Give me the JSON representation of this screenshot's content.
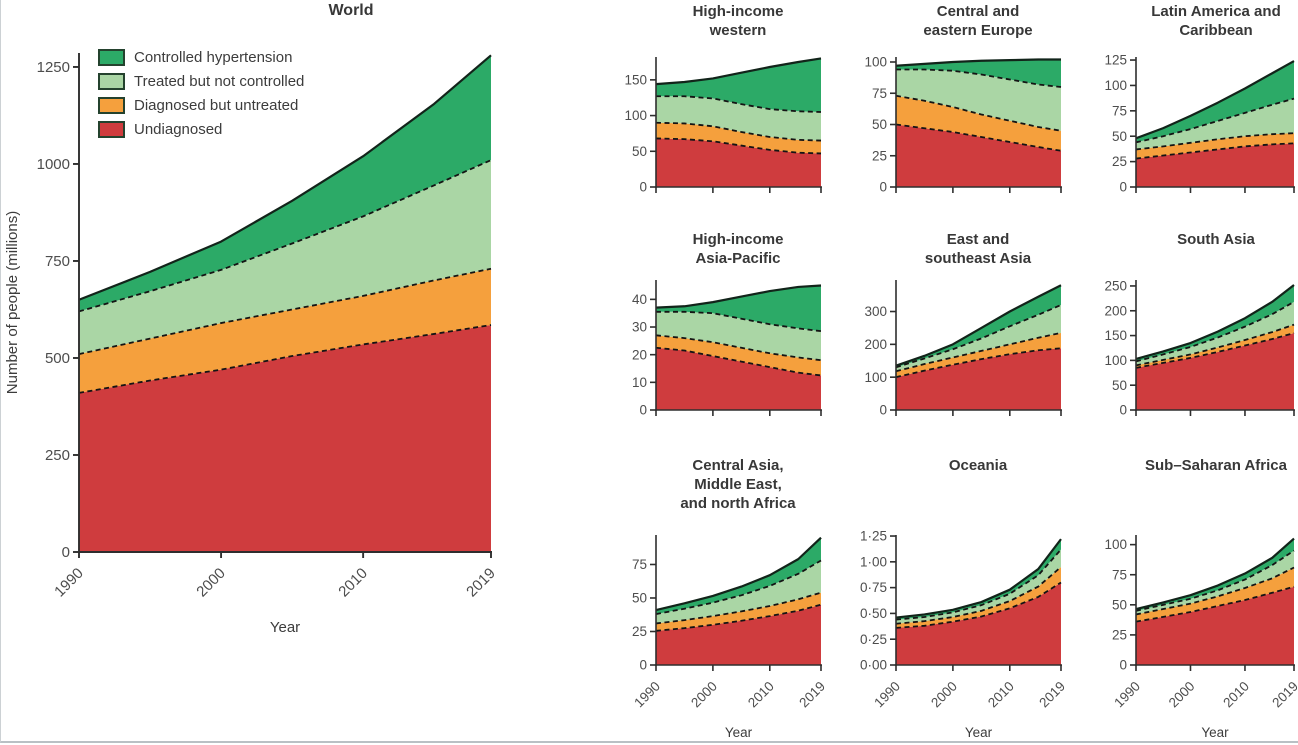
{
  "figure": {
    "legend": {
      "items": [
        {
          "label": "Controlled hypertension",
          "color": "#2caa67"
        },
        {
          "label": "Treated but not controlled",
          "color": "#aad6a5"
        },
        {
          "label": "Diagnosed but untreated",
          "color": "#f5a03d"
        },
        {
          "label": "Undiagnosed",
          "color": "#cf3c3e"
        }
      ]
    },
    "colors": {
      "solid_line": "#12241a",
      "dashed_line": "#141414",
      "axis": "#2e2e2e",
      "tick_label": "#4d4d4d",
      "axis_label": "#3c3c3c"
    }
  },
  "chart_data": [
    {
      "id": "world",
      "type": "area",
      "stacked": true,
      "title": "World",
      "xlabel": "Year",
      "ylabel": "Number of people (millions)",
      "x": [
        1990,
        1995,
        2000,
        2005,
        2010,
        2015,
        2019
      ],
      "xticks": [
        1990,
        2000,
        2010,
        2019
      ],
      "yticks": [
        [
          0,
          "0"
        ],
        [
          250,
          "250"
        ],
        [
          500,
          "500"
        ],
        [
          750,
          "750"
        ],
        [
          1000,
          "1000"
        ],
        [
          1250,
          "1250"
        ]
      ],
      "ylim": [
        0,
        1250
      ],
      "series": [
        {
          "key": "undiagnosed",
          "name": "Undiagnosed",
          "values": [
            410,
            442,
            470,
            505,
            535,
            562,
            585
          ]
        },
        {
          "key": "diagnosed_untreated",
          "name": "Diagnosed but untreated",
          "values": [
            100,
            108,
            120,
            120,
            125,
            138,
            145
          ]
        },
        {
          "key": "treated_not_controlled",
          "name": "Treated but not controlled",
          "values": [
            110,
            122,
            137,
            170,
            205,
            245,
            280
          ]
        },
        {
          "key": "controlled",
          "name": "Controlled hypertension",
          "values": [
            30,
            50,
            73,
            110,
            155,
            210,
            270
          ]
        }
      ]
    },
    {
      "id": "hiw",
      "type": "area",
      "stacked": true,
      "title": "High-income\nwestern",
      "x": [
        1990,
        1995,
        2000,
        2005,
        2010,
        2015,
        2019
      ],
      "xticks": [
        1990,
        2000,
        2010,
        2019
      ],
      "yticks": [
        [
          0,
          "0"
        ],
        [
          50,
          "50"
        ],
        [
          100,
          "100"
        ],
        [
          150,
          "150"
        ]
      ],
      "ylim": [
        0,
        150
      ],
      "series": [
        {
          "key": "undiagnosed",
          "name": "Undiagnosed",
          "values": [
            68,
            67,
            64,
            58,
            52,
            48,
            47
          ]
        },
        {
          "key": "diagnosed_untreated",
          "name": "Diagnosed but untreated",
          "values": [
            22,
            22,
            21,
            19,
            18,
            18,
            18
          ]
        },
        {
          "key": "treated_not_controlled",
          "name": "Treated but not controlled",
          "values": [
            37,
            38,
            39,
            39,
            39,
            40,
            40
          ]
        },
        {
          "key": "controlled",
          "name": "Controlled hypertension",
          "values": [
            17,
            20,
            28,
            44,
            59,
            69,
            75
          ]
        }
      ]
    },
    {
      "id": "cee",
      "type": "area",
      "stacked": true,
      "title": "Central and\neastern Europe",
      "x": [
        1990,
        1995,
        2000,
        2005,
        2010,
        2015,
        2019
      ],
      "xticks": [
        1990,
        2000,
        2010,
        2019
      ],
      "yticks": [
        [
          0,
          "0"
        ],
        [
          25,
          "25"
        ],
        [
          50,
          "50"
        ],
        [
          75,
          "75"
        ],
        [
          100,
          "100"
        ]
      ],
      "ylim": [
        0,
        100
      ],
      "series": [
        {
          "key": "undiagnosed",
          "name": "Undiagnosed",
          "values": [
            50,
            47,
            44,
            40,
            36,
            32,
            29
          ]
        },
        {
          "key": "diagnosed_untreated",
          "name": "Diagnosed but untreated",
          "values": [
            23,
            22,
            20,
            18,
            17,
            16,
            16
          ]
        },
        {
          "key": "treated_not_controlled",
          "name": "Treated but not controlled",
          "values": [
            21,
            25,
            29,
            32,
            33,
            34,
            35
          ]
        },
        {
          "key": "controlled",
          "name": "Controlled hypertension",
          "values": [
            3,
            4.5,
            7,
            11,
            15.5,
            20,
            22
          ]
        }
      ]
    },
    {
      "id": "lac",
      "type": "area",
      "stacked": true,
      "title": "Latin America and\nCaribbean",
      "x": [
        1990,
        1995,
        2000,
        2005,
        2010,
        2015,
        2019
      ],
      "xticks": [
        1990,
        2000,
        2010,
        2019
      ],
      "yticks": [
        [
          0,
          "0"
        ],
        [
          25,
          "25"
        ],
        [
          50,
          "50"
        ],
        [
          75,
          "75"
        ],
        [
          100,
          "100"
        ],
        [
          125,
          "125"
        ]
      ],
      "ylim": [
        0,
        125
      ],
      "series": [
        {
          "key": "undiagnosed",
          "name": "Undiagnosed",
          "values": [
            28,
            31,
            34,
            37,
            40,
            42,
            43
          ]
        },
        {
          "key": "diagnosed_untreated",
          "name": "Diagnosed but untreated",
          "values": [
            9,
            9,
            9.5,
            10,
            10,
            10,
            10
          ]
        },
        {
          "key": "treated_not_controlled",
          "name": "Treated but not controlled",
          "values": [
            7,
            10,
            13.5,
            18,
            23,
            29,
            34
          ]
        },
        {
          "key": "controlled",
          "name": "Controlled hypertension",
          "values": [
            4,
            8,
            13,
            18,
            24,
            31,
            37
          ]
        }
      ]
    },
    {
      "id": "hiap",
      "type": "area",
      "stacked": true,
      "title": "High-income\nAsia-Pacific",
      "x": [
        1990,
        1995,
        2000,
        2005,
        2010,
        2015,
        2019
      ],
      "xticks": [
        1990,
        2000,
        2010,
        2019
      ],
      "yticks": [
        [
          0,
          "0"
        ],
        [
          10,
          "10"
        ],
        [
          20,
          "20"
        ],
        [
          30,
          "30"
        ],
        [
          40,
          "40"
        ]
      ],
      "ylim": [
        0,
        40
      ],
      "series": [
        {
          "key": "undiagnosed",
          "name": "Undiagnosed",
          "values": [
            22.5,
            21.5,
            19.5,
            17.5,
            15.5,
            13.5,
            12.5
          ]
        },
        {
          "key": "diagnosed_untreated",
          "name": "Diagnosed but untreated",
          "values": [
            4.5,
            4.5,
            5,
            5,
            5,
            5.5,
            5.5
          ]
        },
        {
          "key": "treated_not_controlled",
          "name": "Treated but not controlled",
          "values": [
            8.5,
            9.5,
            10.5,
            10.5,
            10.5,
            10.5,
            10.5
          ]
        },
        {
          "key": "controlled",
          "name": "Controlled hypertension",
          "values": [
            1.5,
            2,
            4,
            8,
            12,
            15,
            16.5
          ]
        }
      ]
    },
    {
      "id": "esea",
      "type": "area",
      "stacked": true,
      "title": "East and\nsoutheast Asia",
      "x": [
        1990,
        1995,
        2000,
        2005,
        2010,
        2015,
        2019
      ],
      "xticks": [
        1990,
        2000,
        2010,
        2019
      ],
      "yticks": [
        [
          0,
          "0"
        ],
        [
          100,
          "100"
        ],
        [
          200,
          "200"
        ],
        [
          300,
          "300"
        ]
      ],
      "ylim": [
        0,
        300
      ],
      "series": [
        {
          "key": "undiagnosed",
          "name": "Undiagnosed",
          "values": [
            100,
            120,
            138,
            155,
            170,
            182,
            188
          ]
        },
        {
          "key": "diagnosed_untreated",
          "name": "Diagnosed but untreated",
          "values": [
            18,
            20,
            22,
            25,
            30,
            38,
            47
          ]
        },
        {
          "key": "treated_not_controlled",
          "name": "Treated but not controlled",
          "values": [
            12,
            17,
            25,
            38,
            55,
            70,
            85
          ]
        },
        {
          "key": "controlled",
          "name": "Controlled hypertension",
          "values": [
            5,
            8,
            15,
            32,
            45,
            55,
            60
          ]
        }
      ]
    },
    {
      "id": "sasia",
      "type": "area",
      "stacked": true,
      "title": "South Asia",
      "x": [
        1990,
        1995,
        2000,
        2005,
        2010,
        2015,
        2019
      ],
      "xticks": [
        1990,
        2000,
        2010,
        2019
      ],
      "yticks": [
        [
          0,
          "0"
        ],
        [
          50,
          "50"
        ],
        [
          100,
          "100"
        ],
        [
          150,
          "150"
        ],
        [
          200,
          "200"
        ],
        [
          250,
          "250"
        ]
      ],
      "ylim": [
        0,
        250
      ],
      "series": [
        {
          "key": "undiagnosed",
          "name": "Undiagnosed",
          "values": [
            85,
            95,
            105,
            117,
            130,
            143,
            155
          ]
        },
        {
          "key": "diagnosed_untreated",
          "name": "Diagnosed but untreated",
          "values": [
            5,
            6,
            7,
            9,
            11,
            14,
            17
          ]
        },
        {
          "key": "treated_not_controlled",
          "name": "Treated but not controlled",
          "values": [
            8,
            11,
            15,
            20,
            27,
            36,
            46
          ]
        },
        {
          "key": "controlled",
          "name": "Controlled hypertension",
          "values": [
            5,
            6,
            8,
            12,
            17,
            25,
            34
          ]
        }
      ]
    },
    {
      "id": "camena",
      "type": "area",
      "stacked": true,
      "title": "Central Asia,\nMiddle East,\nand north Africa",
      "xlabel": "Year",
      "x": [
        1990,
        1995,
        2000,
        2005,
        2010,
        2015,
        2019
      ],
      "xticks": [
        1990,
        2000,
        2010,
        2019
      ],
      "yticks": [
        [
          0,
          "0"
        ],
        [
          25,
          "25"
        ],
        [
          50,
          "50"
        ],
        [
          75,
          "75"
        ]
      ],
      "ylim": [
        0,
        75
      ],
      "series": [
        {
          "key": "undiagnosed",
          "name": "Undiagnosed",
          "values": [
            25.5,
            27.5,
            30,
            33,
            36.5,
            40.5,
            45
          ]
        },
        {
          "key": "diagnosed_untreated",
          "name": "Diagnosed but untreated",
          "values": [
            5.5,
            6,
            6.5,
            7,
            7.5,
            8.5,
            9
          ]
        },
        {
          "key": "treated_not_controlled",
          "name": "Treated but not controlled",
          "values": [
            7,
            8.5,
            10,
            12,
            15,
            19,
            24
          ]
        },
        {
          "key": "controlled",
          "name": "Controlled hypertension",
          "values": [
            3,
            4,
            5,
            6.5,
            8,
            11,
            17
          ]
        }
      ]
    },
    {
      "id": "oceania",
      "type": "area",
      "stacked": true,
      "title": "Oceania",
      "xlabel": "Year",
      "x": [
        1990,
        1995,
        2000,
        2005,
        2010,
        2015,
        2019
      ],
      "xticks": [
        1990,
        2000,
        2010,
        2019
      ],
      "yticks": [
        [
          0,
          "0·00"
        ],
        [
          0.25,
          "0·25"
        ],
        [
          0.5,
          "0·50"
        ],
        [
          0.75,
          "0·75"
        ],
        [
          1,
          "1·00"
        ],
        [
          1.25,
          "1·25"
        ]
      ],
      "ylim": [
        0,
        1.25
      ],
      "series": [
        {
          "key": "undiagnosed",
          "name": "Undiagnosed",
          "values": [
            0.36,
            0.38,
            0.42,
            0.47,
            0.55,
            0.66,
            0.8
          ]
        },
        {
          "key": "diagnosed_untreated",
          "name": "Diagnosed but untreated",
          "values": [
            0.04,
            0.045,
            0.045,
            0.055,
            0.07,
            0.1,
            0.15
          ]
        },
        {
          "key": "treated_not_controlled",
          "name": "Treated but not controlled",
          "values": [
            0.04,
            0.04,
            0.045,
            0.055,
            0.07,
            0.11,
            0.17
          ]
        },
        {
          "key": "controlled",
          "name": "Controlled hypertension",
          "values": [
            0.02,
            0.025,
            0.025,
            0.03,
            0.04,
            0.06,
            0.1
          ]
        }
      ]
    },
    {
      "id": "ssa",
      "type": "area",
      "stacked": true,
      "title": "Sub–Saharan Africa",
      "xlabel": "Year",
      "x": [
        1990,
        1995,
        2000,
        2005,
        2010,
        2015,
        2019
      ],
      "xticks": [
        1990,
        2000,
        2010,
        2019
      ],
      "yticks": [
        [
          0,
          "0"
        ],
        [
          25,
          "25"
        ],
        [
          50,
          "50"
        ],
        [
          75,
          "75"
        ],
        [
          100,
          "100"
        ]
      ],
      "ylim": [
        0,
        100
      ],
      "series": [
        {
          "key": "undiagnosed",
          "name": "Undiagnosed",
          "values": [
            36,
            40,
            44,
            49,
            54,
            60,
            65
          ]
        },
        {
          "key": "diagnosed_untreated",
          "name": "Diagnosed but untreated",
          "values": [
            6,
            6.5,
            7,
            8,
            10,
            12,
            16
          ]
        },
        {
          "key": "treated_not_controlled",
          "name": "Treated but not controlled",
          "values": [
            3,
            3.5,
            4,
            5,
            7,
            11,
            14
          ]
        },
        {
          "key": "controlled",
          "name": "Controlled hypertension",
          "values": [
            1.5,
            2,
            3,
            4,
            5,
            6,
            10
          ]
        }
      ]
    }
  ]
}
